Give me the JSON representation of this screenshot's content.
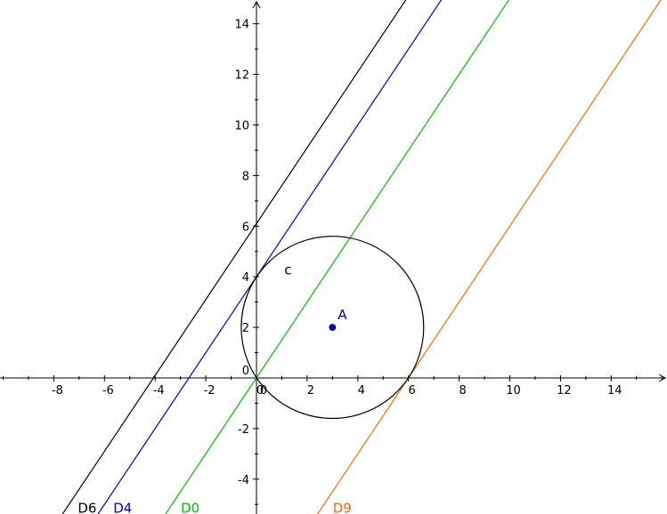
{
  "chart_data": {
    "type": "line",
    "xlim": [
      -10,
      16
    ],
    "ylim": [
      -5.4,
      15
    ],
    "x_ticks": [
      -8,
      -6,
      -4,
      -2,
      0,
      2,
      4,
      6,
      8,
      10,
      12,
      14
    ],
    "y_ticks": [
      -4,
      -2,
      0,
      2,
      4,
      6,
      8,
      10,
      12,
      14
    ],
    "grid": false,
    "lines": [
      {
        "name": "D6",
        "slope": 1.5,
        "intercept": 6.1,
        "color": "#000000"
      },
      {
        "name": "D4",
        "slope": 1.5,
        "intercept": 4.0,
        "color": "#0000cc"
      },
      {
        "name": "D0",
        "slope": 1.5,
        "intercept": 0.0,
        "color": "#00c000"
      },
      {
        "name": "D9",
        "slope": 1.5,
        "intercept": -9.0,
        "color": "#ff6600"
      }
    ],
    "circle": {
      "name": "c",
      "center": [
        3,
        2
      ],
      "radius": 3.6,
      "color": "#000000"
    },
    "point": {
      "name": "A",
      "x": 3,
      "y": 2,
      "color": "#0000cc"
    }
  }
}
